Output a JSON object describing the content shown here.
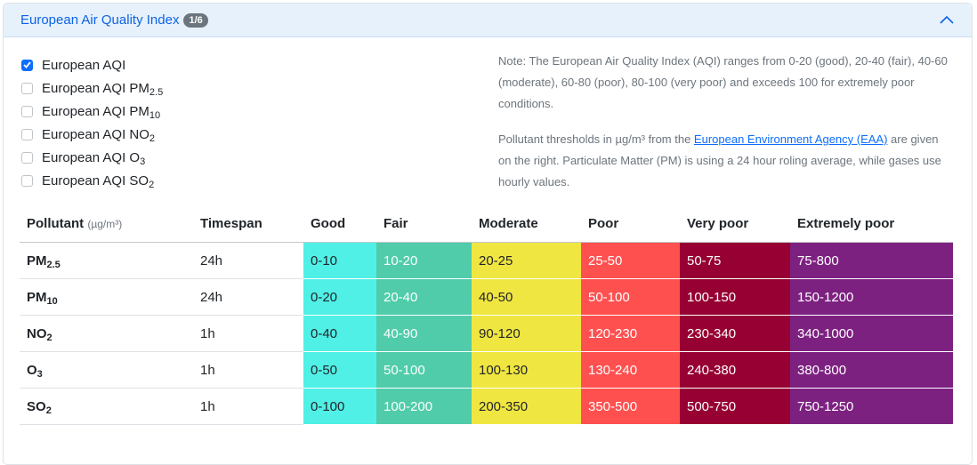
{
  "header": {
    "title": "European Air Quality Index",
    "badge": "1/6"
  },
  "checkboxes": [
    {
      "label": {
        "base": "European AQI"
      },
      "checked": true
    },
    {
      "label": {
        "base": "European AQI PM",
        "sub": "2.5"
      },
      "checked": false
    },
    {
      "label": {
        "base": "European AQI PM",
        "sub": "10"
      },
      "checked": false
    },
    {
      "label": {
        "base": "European AQI NO",
        "sub": "2"
      },
      "checked": false
    },
    {
      "label": {
        "base": "European AQI O",
        "sub": "3"
      },
      "checked": false
    },
    {
      "label": {
        "base": "European AQI SO",
        "sub": "2"
      },
      "checked": false
    }
  ],
  "notes": {
    "paragraph1": "Note: The European Air Quality Index (AQI) ranges from 0-20 (good), 20-40 (fair), 40-60 (moderate), 60-80 (poor), 80-100 (very poor) and exceeds 100 for extremely poor conditions.",
    "paragraph2": {
      "before": "Pollutant thresholds in µg/m³ from the ",
      "link": "European Environment Agency (EAA)",
      "after": " are given on the right. Particulate Matter (PM) is using a 24 hour roling average, while gases use hourly values."
    }
  },
  "table": {
    "header": {
      "pollutant": "Pollutant",
      "unit": "(µg/m³)",
      "columns": [
        "Timespan",
        "Good",
        "Fair",
        "Moderate",
        "Poor",
        "Very poor",
        "Extremely poor"
      ]
    },
    "rows": [
      {
        "pollutant": {
          "base": "PM",
          "sub": "2.5"
        },
        "cells": [
          "24h",
          "0-10",
          "10-20",
          "20-25",
          "25-50",
          "50-75",
          "75-800"
        ]
      },
      {
        "pollutant": {
          "base": "PM",
          "sub": "10"
        },
        "cells": [
          "24h",
          "0-20",
          "20-40",
          "40-50",
          "50-100",
          "100-150",
          "150-1200"
        ]
      },
      {
        "pollutant": {
          "base": "NO",
          "sub": "2"
        },
        "cells": [
          "1h",
          "0-40",
          "40-90",
          "90-120",
          "120-230",
          "230-340",
          "340-1000"
        ]
      },
      {
        "pollutant": {
          "base": "O",
          "sub": "3"
        },
        "cells": [
          "1h",
          "0-50",
          "50-100",
          "100-130",
          "130-240",
          "240-380",
          "380-800"
        ]
      },
      {
        "pollutant": {
          "base": "SO",
          "sub": "2"
        },
        "cells": [
          "1h",
          "0-100",
          "100-200",
          "200-350",
          "350-500",
          "500-750",
          "750-1250"
        ]
      }
    ]
  }
}
